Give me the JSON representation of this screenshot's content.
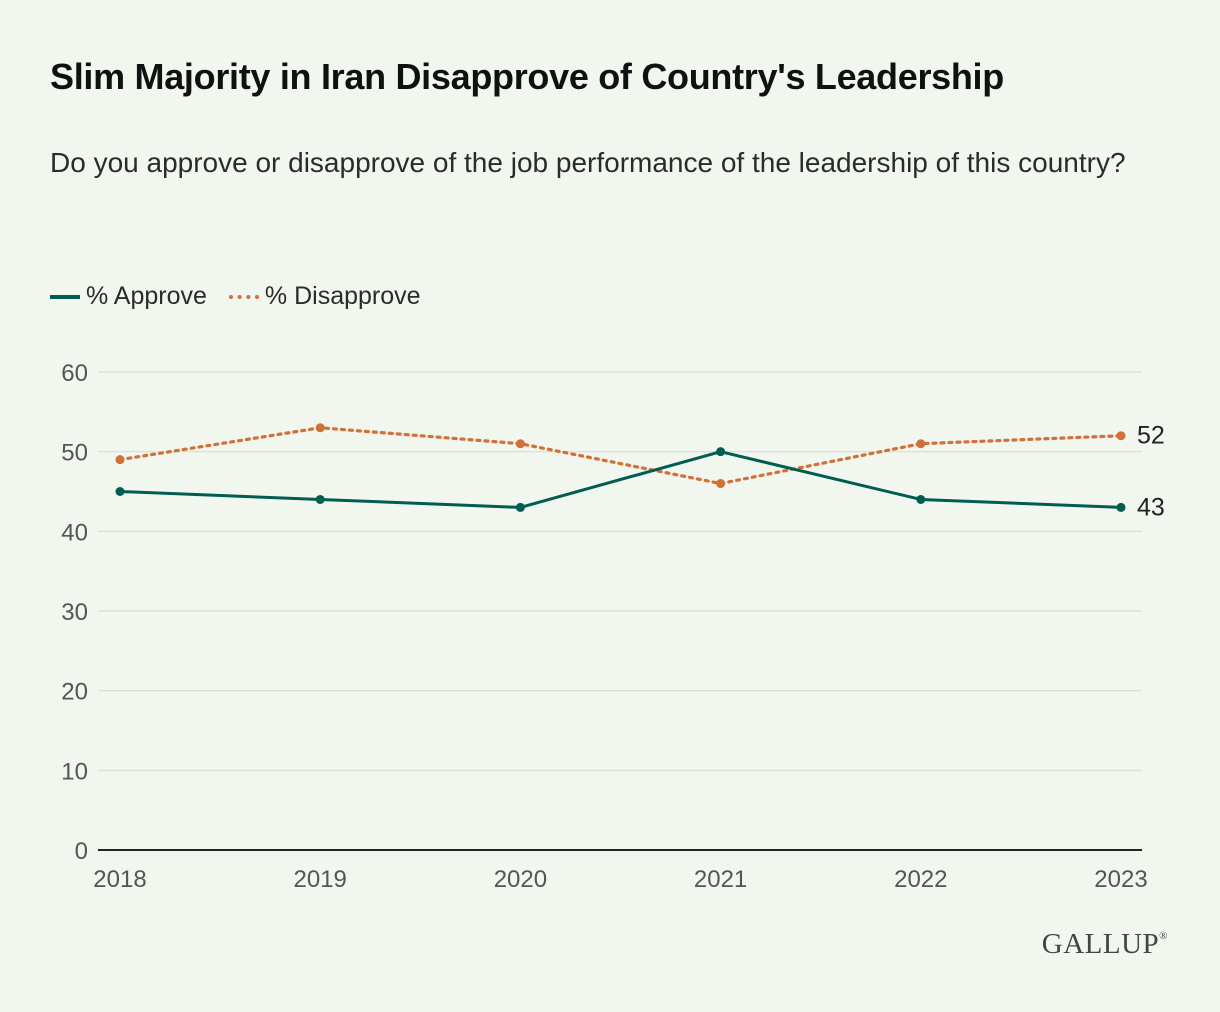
{
  "title": "Slim Majority in Iran Disapprove of Country's Leadership",
  "subtitle": "Do you approve or disapprove of the job performance of the leadership of this country?",
  "logo": "GALLUP",
  "colors": {
    "approve": "#005d4f",
    "disapprove": "#d2703a",
    "grid": "#d6ddd4",
    "background": "#f1f7ef"
  },
  "chart_data": {
    "type": "line",
    "categories": [
      "2018",
      "2019",
      "2020",
      "2021",
      "2022",
      "2023"
    ],
    "series": [
      {
        "name": "% Approve",
        "values": [
          45,
          44,
          43,
          50,
          44,
          43
        ],
        "style": "solid",
        "end_label": "43"
      },
      {
        "name": "% Disapprove",
        "values": [
          49,
          53,
          51,
          46,
          51,
          52
        ],
        "style": "dotted",
        "end_label": "52"
      }
    ],
    "yticks": [
      "0",
      "10",
      "20",
      "30",
      "40",
      "50",
      "60"
    ],
    "ylim": [
      0,
      60
    ],
    "grid": true,
    "legend": "top-left"
  }
}
